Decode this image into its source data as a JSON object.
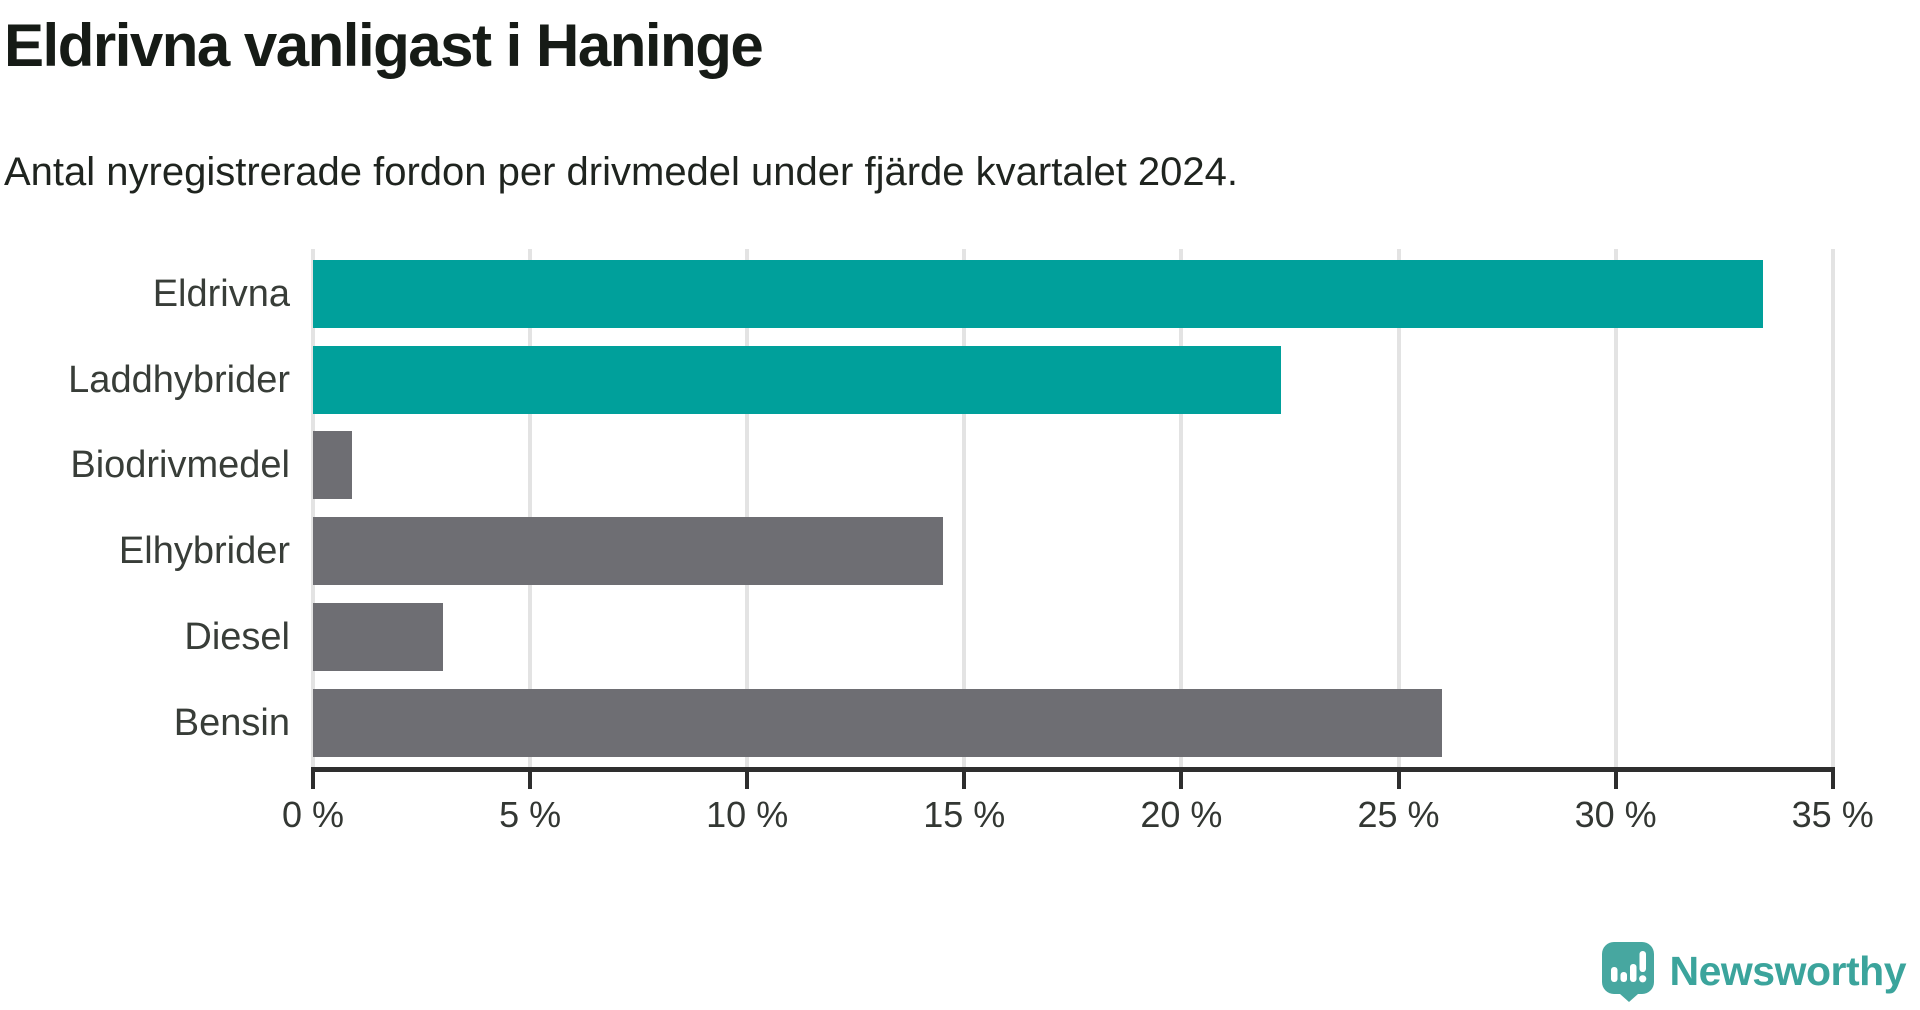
{
  "chart_data": {
    "type": "bar",
    "orientation": "horizontal",
    "title": "Eldrivna vanligast i Haninge",
    "subtitle": "Antal nyregistrerade fordon per drivmedel under fjärde kvartalet 2024.",
    "categories": [
      "Eldrivna",
      "Laddhybrider",
      "Biodrivmedel",
      "Elhybrider",
      "Diesel",
      "Bensin"
    ],
    "values": [
      33.4,
      22.3,
      0.9,
      14.5,
      3.0,
      26.0
    ],
    "unit": "%",
    "bar_colors": [
      "#00a09b",
      "#00a09b",
      "#6e6e73",
      "#6e6e73",
      "#6e6e73",
      "#6e6e73"
    ],
    "x_ticks": [
      0,
      5,
      10,
      15,
      20,
      25,
      30,
      35
    ],
    "x_tick_labels": [
      "0 %",
      "5 %",
      "10 %",
      "15 %",
      "20 %",
      "25 %",
      "30 %",
      "35 %"
    ],
    "xlim": [
      0,
      35
    ],
    "grid": true,
    "legend": "none"
  },
  "colors": {
    "accent_teal": "#00a09b",
    "bar_gray": "#6e6e73",
    "gridline": "#e3e3e3",
    "axis": "#2e2e2e",
    "title_text": "#161b16",
    "subtitle_text": "#1f241f",
    "label_text": "#383d38",
    "brand_teal": "#3ba49c",
    "brand_mark_teal": "#47a7a0"
  },
  "branding": {
    "logo_text": "Newsworthy",
    "logo_icon": "newsworthy-speech-bubble-chart-icon"
  }
}
